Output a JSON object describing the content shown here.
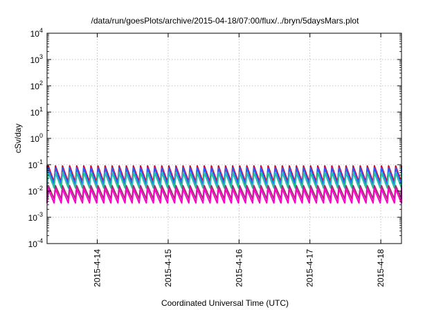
{
  "chart_data": {
    "type": "line",
    "title": "/data/run/goesPlots/archive/2015-04-18/07:00/flux/../bryn/5daysMars.plot",
    "xlabel": "Coordinated Universal Time (UTC)",
    "ylabel": "cSv/day",
    "yscale": "log",
    "ylim": [
      0.0001,
      10000
    ],
    "xlim": [
      "2015-04-13T07:00",
      "2015-04-18T07:00"
    ],
    "grid": true,
    "y_ticks": [
      {
        "base": "10",
        "exp": "-4"
      },
      {
        "base": "10",
        "exp": "-3"
      },
      {
        "base": "10",
        "exp": "-2"
      },
      {
        "base": "10",
        "exp": "-1"
      },
      {
        "base": "10",
        "exp": "0"
      },
      {
        "base": "10",
        "exp": "1"
      },
      {
        "base": "10",
        "exp": "2"
      },
      {
        "base": "10",
        "exp": "3"
      },
      {
        "base": "10",
        "exp": "4"
      }
    ],
    "x_ticks": [
      {
        "label": "2015-4-14",
        "time": "2015-04-14T00:00"
      },
      {
        "label": "2015-4-15",
        "time": "2015-04-15T00:00"
      },
      {
        "label": "2015-4-16",
        "time": "2015-04-16T00:00"
      },
      {
        "label": "2015-4-17",
        "time": "2015-04-17T00:00"
      },
      {
        "label": "2015-4-18",
        "time": "2015-04-18T00:00"
      }
    ],
    "cycle_hours": 2.4,
    "series": [
      {
        "color": "#e3001b",
        "peak": 0.09,
        "trough": 0.022
      },
      {
        "color": "#2b5cff",
        "peak": 0.075,
        "trough": 0.018
      },
      {
        "color": "#23c0a0",
        "peak": 0.05,
        "trough": 0.013
      },
      {
        "color": "#a03070",
        "peak": 0.016,
        "trough": 0.005
      },
      {
        "color": "#ff00cc",
        "peak": 0.012,
        "trough": 0.0035
      }
    ]
  }
}
